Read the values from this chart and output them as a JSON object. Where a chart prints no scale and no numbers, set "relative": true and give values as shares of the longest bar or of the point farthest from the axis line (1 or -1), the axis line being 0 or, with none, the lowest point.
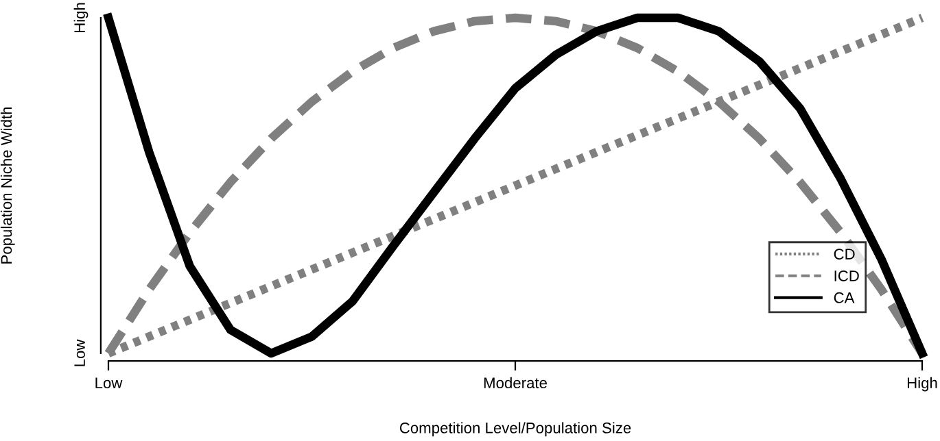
{
  "chart_data": {
    "type": "line",
    "xlabel": "Competition Level/Population Size",
    "ylabel": "Population Niche Width",
    "relative": true,
    "categories": [
      "Low",
      null,
      null,
      null,
      null,
      null,
      null,
      null,
      null,
      null,
      "Moderate",
      null,
      null,
      null,
      null,
      null,
      null,
      null,
      null,
      null,
      "High"
    ],
    "annotations": [
      "Low",
      "High"
    ],
    "grid": false,
    "legend": "bottom right",
    "marker": "none",
    "series": [
      {
        "name": "CD",
        "color": "#808080",
        "line_style": "dotted",
        "values": [
          0,
          0.05,
          0.1,
          0.15,
          0.2,
          0.25,
          0.3,
          0.35,
          0.4,
          0.45,
          0.5,
          0.55,
          0.6,
          0.65,
          0.7,
          0.75,
          0.8,
          0.85,
          0.9,
          0.95,
          1
        ]
      },
      {
        "name": "ICD",
        "color": "#808080",
        "line_style": "dashed",
        "values": [
          0,
          0.19,
          0.36,
          0.51,
          0.64,
          0.75,
          0.84,
          0.91,
          0.96,
          0.99,
          1,
          0.99,
          0.96,
          0.91,
          0.84,
          0.75,
          0.64,
          0.51,
          0.36,
          0.19,
          0
        ]
      },
      {
        "name": "CA",
        "color": "#000000",
        "line_style": "solid",
        "values": [
          1,
          0.6,
          0.26,
          0.07,
          0,
          0.05,
          0.155,
          0.32,
          0.48,
          0.64,
          0.79,
          0.89,
          0.96,
          1,
          1,
          0.96,
          0.87,
          0.73,
          0.52,
          0.28,
          0
        ]
      }
    ]
  }
}
